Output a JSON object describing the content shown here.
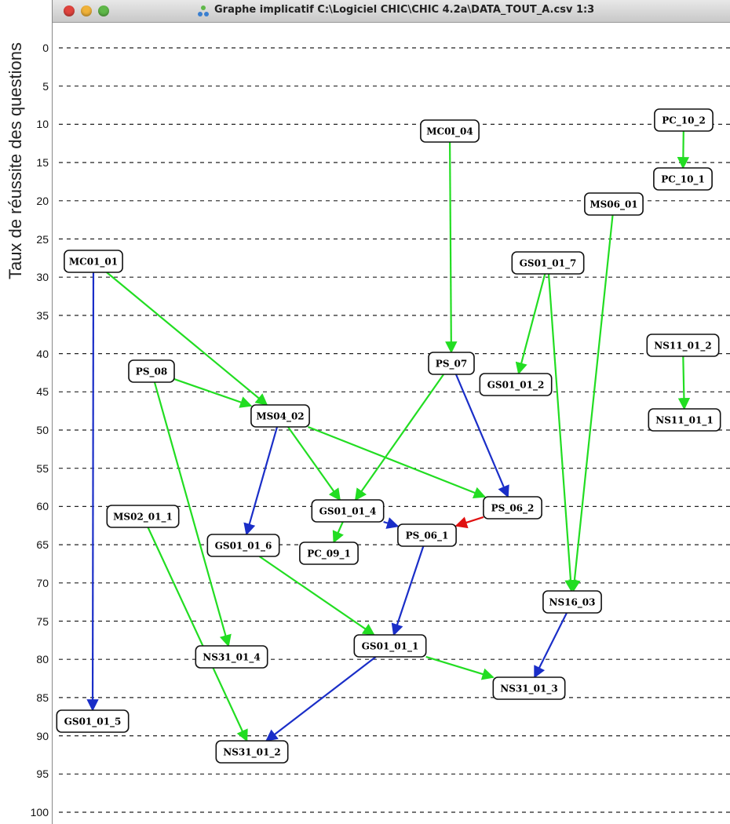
{
  "axis": {
    "label": "Taux de réussite des questions",
    "ticks": [
      "0",
      "5",
      "10",
      "15",
      "20",
      "25",
      "30",
      "35",
      "40",
      "45",
      "50",
      "55",
      "60",
      "65",
      "70",
      "75",
      "80",
      "85",
      "90",
      "95",
      "100"
    ]
  },
  "window": {
    "title": "Graphe implicatif C:\\Logiciel CHIC\\CHIC 4.2a\\DATA_TOUT_A.csv 1:3",
    "app_icon": "chic-graph-icon"
  },
  "colors": {
    "green": "#22dd22",
    "blue": "#1a2ec8",
    "red": "#e01010"
  },
  "nodes": [
    {
      "id": "MC01_04",
      "label": "MC0I_04"
    },
    {
      "id": "PC_10_2",
      "label": "PC_10_2"
    },
    {
      "id": "PC_10_1",
      "label": "PC_10_1"
    },
    {
      "id": "MS06_01",
      "label": "MS06_01"
    },
    {
      "id": "MC01_01",
      "label": "MC01_01"
    },
    {
      "id": "GS01_01_7",
      "label": "GS01_01_7"
    },
    {
      "id": "NS11_01_2",
      "label": "NS11_01_2"
    },
    {
      "id": "PS_08",
      "label": "PS_08"
    },
    {
      "id": "PS_07",
      "label": "PS_07"
    },
    {
      "id": "GS01_01_2",
      "label": "GS01_01_2"
    },
    {
      "id": "MS04_02",
      "label": "MS04_02"
    },
    {
      "id": "NS11_01_1",
      "label": "NS11_01_1"
    },
    {
      "id": "GS01_01_4",
      "label": "GS01_01_4"
    },
    {
      "id": "PS_06_2",
      "label": "PS_06_2"
    },
    {
      "id": "MS02_01_1",
      "label": "MS02_01_1"
    },
    {
      "id": "PS_06_1",
      "label": "PS_06_1"
    },
    {
      "id": "GS01_01_6",
      "label": "GS01_01_6"
    },
    {
      "id": "PC_09_1",
      "label": "PC_09_1"
    },
    {
      "id": "NS16_03",
      "label": "NS16_03"
    },
    {
      "id": "NS31_01_4",
      "label": "NS31_01_4"
    },
    {
      "id": "GS01_01_1",
      "label": "GS01_01_1"
    },
    {
      "id": "NS31_01_3",
      "label": "NS31_01_3"
    },
    {
      "id": "GS01_01_5",
      "label": "GS01_01_5"
    },
    {
      "id": "NS31_01_2",
      "label": "NS31_01_2"
    }
  ],
  "edges": [
    {
      "from": "MC01_04",
      "to": "PS_07",
      "color": "green"
    },
    {
      "from": "PC_10_2",
      "to": "PC_10_1",
      "color": "green"
    },
    {
      "from": "MS06_01",
      "to": "NS16_03",
      "color": "green"
    },
    {
      "from": "MC01_01",
      "to": "GS01_01_5",
      "color": "blue"
    },
    {
      "from": "MC01_01",
      "to": "MS04_02",
      "color": "green"
    },
    {
      "from": "GS01_01_7",
      "to": "GS01_01_2",
      "color": "green"
    },
    {
      "from": "GS01_01_7",
      "to": "NS16_03",
      "color": "green"
    },
    {
      "from": "NS11_01_2",
      "to": "NS11_01_1",
      "color": "green"
    },
    {
      "from": "PS_08",
      "to": "MS04_02",
      "color": "green"
    },
    {
      "from": "PS_08",
      "to": "NS31_01_4",
      "color": "green"
    },
    {
      "from": "PS_07",
      "to": "GS01_01_4",
      "color": "green"
    },
    {
      "from": "PS_07",
      "to": "PS_06_2",
      "color": "blue"
    },
    {
      "from": "MS04_02",
      "to": "GS01_01_4",
      "color": "green"
    },
    {
      "from": "MS04_02",
      "to": "PS_06_2",
      "color": "green"
    },
    {
      "from": "MS04_02",
      "to": "GS01_01_6",
      "color": "blue"
    },
    {
      "from": "GS01_01_4",
      "to": "PS_06_1",
      "color": "blue"
    },
    {
      "from": "GS01_01_4",
      "to": "PC_09_1",
      "color": "green"
    },
    {
      "from": "PS_06_2",
      "to": "PS_06_1",
      "color": "red"
    },
    {
      "from": "PS_06_1",
      "to": "GS01_01_1",
      "color": "blue"
    },
    {
      "from": "GS01_01_6",
      "to": "GS01_01_1",
      "color": "green"
    },
    {
      "from": "GS01_01_1",
      "to": "NS31_01_3",
      "color": "green"
    },
    {
      "from": "GS01_01_1",
      "to": "NS31_01_2",
      "color": "blue"
    },
    {
      "from": "MS02_01_1",
      "to": "NS31_01_2",
      "color": "green"
    },
    {
      "from": "NS16_03",
      "to": "NS31_01_3",
      "color": "blue"
    }
  ]
}
